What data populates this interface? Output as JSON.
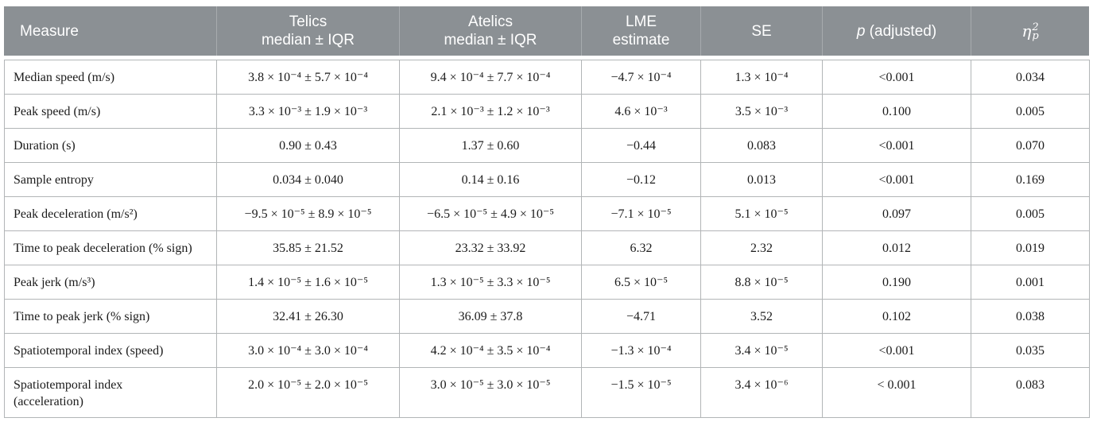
{
  "theme": {
    "header_bg": "#8b9094",
    "header_separator": "#a7abae",
    "header_text": "#ffffff",
    "body_border": "#b2b5b7",
    "body_text": "#1b1b1b",
    "page_bg": "#ffffff"
  },
  "table": {
    "header": {
      "measure": {
        "label": "Measure"
      },
      "telics": {
        "line1": "Telics",
        "line2": "median ± IQR"
      },
      "atelics": {
        "line1": "Atelics",
        "line2": "median ± IQR"
      },
      "lme": {
        "line1": "LME",
        "line2": "estimate"
      },
      "se": {
        "label": "SE"
      },
      "p": {
        "italic": "p",
        "rest": "(adjusted)"
      },
      "eta": {
        "base": "η",
        "sup": "2",
        "sub": "p"
      }
    },
    "rows": [
      [
        "Median speed (m/s)",
        "3.8 × 10⁻⁴ ± 5.7 × 10⁻⁴",
        "9.4 × 10⁻⁴ ± 7.7 × 10⁻⁴",
        "−4.7 × 10⁻⁴",
        "1.3 × 10⁻⁴",
        "<0.001",
        "0.034"
      ],
      [
        "Peak speed (m/s)",
        "3.3 × 10⁻³ ± 1.9 × 10⁻³",
        "2.1 × 10⁻³ ± 1.2 × 10⁻³",
        "4.6 × 10⁻³",
        "3.5 × 10⁻³",
        "0.100",
        "0.005"
      ],
      [
        "Duration (s)",
        "0.90 ± 0.43",
        "1.37 ± 0.60",
        "−0.44",
        "0.083",
        "<0.001",
        "0.070"
      ],
      [
        "Sample entropy",
        "0.034 ± 0.040",
        "0.14 ± 0.16",
        "−0.12",
        "0.013",
        "<0.001",
        "0.169"
      ],
      [
        "Peak deceleration (m/s²)",
        "−9.5 × 10⁻⁵ ± 8.9 × 10⁻⁵",
        "−6.5 × 10⁻⁵ ± 4.9 × 10⁻⁵",
        "−7.1 × 10⁻⁵",
        "5.1 × 10⁻⁵",
        "0.097",
        "0.005"
      ],
      [
        "Time to peak deceleration (% sign)",
        "35.85 ± 21.52",
        "23.32 ± 33.92",
        "6.32",
        "2.32",
        "0.012",
        "0.019"
      ],
      [
        "Peak jerk (m/s³)",
        "1.4 × 10⁻⁵ ± 1.6 × 10⁻⁵",
        "1.3 × 10⁻⁵ ± 3.3 × 10⁻⁵",
        "6.5 × 10⁻⁵",
        "8.8 × 10⁻⁵",
        "0.190",
        "0.001"
      ],
      [
        "Time to peak jerk (% sign)",
        "32.41 ± 26.30",
        "36.09 ± 37.8",
        "−4.71",
        "3.52",
        "0.102",
        "0.038"
      ],
      [
        "Spatiotemporal index (speed)",
        "3.0 × 10⁻⁴ ± 3.0 × 10⁻⁴",
        "4.2 × 10⁻⁴ ± 3.5 × 10⁻⁴",
        "−1.3 × 10⁻⁴",
        "3.4 × 10⁻⁵",
        "<0.001",
        "0.035"
      ],
      [
        "Spatiotemporal index (acceleration)",
        "2.0 × 10⁻⁵ ± 2.0 × 10⁻⁵",
        "3.0 × 10⁻⁵ ± 3.0 × 10⁻⁵",
        "−1.5 × 10⁻⁵",
        "3.4 × 10⁻⁶",
        "< 0.001",
        "0.083"
      ]
    ]
  }
}
